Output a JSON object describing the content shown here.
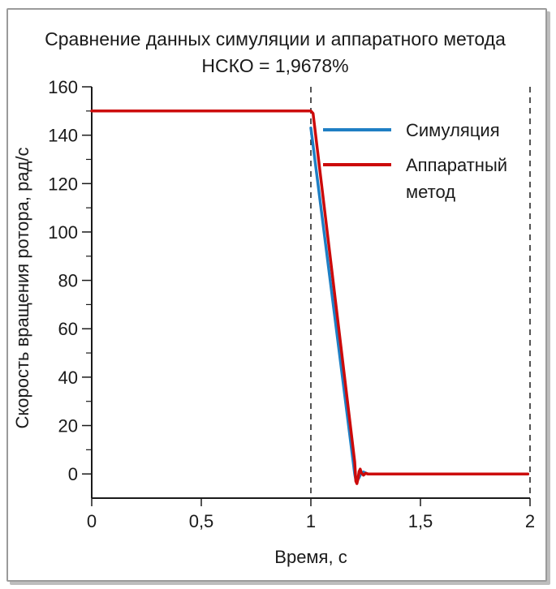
{
  "chart_data": {
    "type": "line",
    "title": "Сравнение данных симуляции и аппаратного метода",
    "subtitle": "НСКО = 1,9678%",
    "xlabel": "Время, с",
    "ylabel": "Скорость вращения ротора, рад/с",
    "xlim": [
      0,
      2
    ],
    "ylim": [
      -10,
      160
    ],
    "x_ticks": [
      0,
      0.5,
      1,
      1.5,
      2
    ],
    "x_tick_labels": [
      "0",
      "0,5",
      "1",
      "1,5",
      "2"
    ],
    "y_ticks": [
      0,
      20,
      40,
      60,
      80,
      100,
      120,
      140,
      160
    ],
    "y_tick_labels": [
      "0",
      "20",
      "40",
      "60",
      "80",
      "100",
      "120",
      "140",
      "160"
    ],
    "vertical_dashed_lines": [
      1,
      2
    ],
    "grid": false,
    "legend_position": "top-right",
    "series": [
      {
        "name": "Симуляция",
        "color": "#1f7fc4",
        "x": [
          1.0,
          1.2,
          1.205,
          1.21,
          1.22,
          1.23,
          1.24,
          1.26,
          1.3,
          1.5,
          1.99
        ],
        "y": [
          143,
          0,
          -2.5,
          -3,
          -1.5,
          0.5,
          0.8,
          0,
          0,
          0,
          0
        ]
      },
      {
        "name": "Аппаратный метод",
        "color": "#cc0a0a",
        "x": [
          0,
          1.0,
          1.01,
          1.2,
          1.205,
          1.21,
          1.215,
          1.22,
          1.225,
          1.23,
          1.24,
          1.25,
          1.26,
          1.3,
          1.5,
          1.99
        ],
        "y": [
          150,
          150,
          149,
          5,
          -3,
          -4,
          -2,
          1,
          2,
          0.5,
          -0.5,
          0.3,
          0,
          0,
          0,
          0
        ]
      }
    ],
    "legend": {
      "entries": [
        {
          "lines": [
            "Симуляция"
          ],
          "color": "#1f7fc4"
        },
        {
          "lines": [
            "Аппаратный",
            "метод"
          ],
          "color": "#cc0a0a"
        }
      ]
    }
  }
}
